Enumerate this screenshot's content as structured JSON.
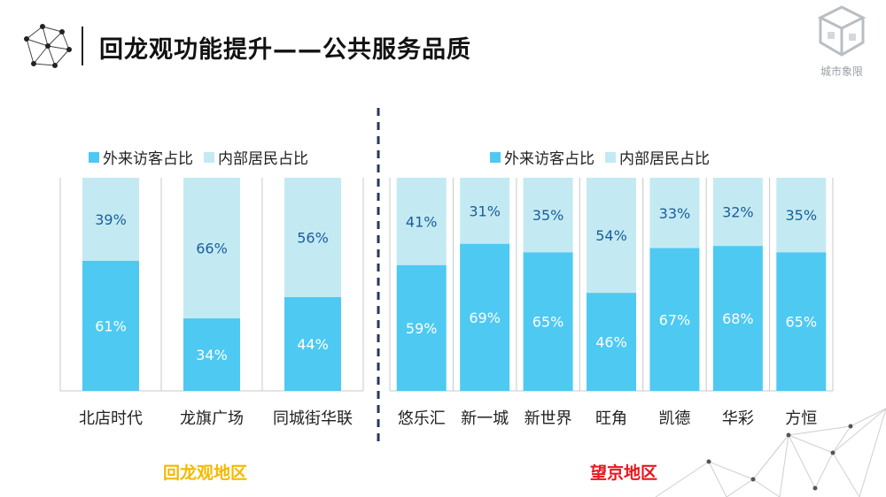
{
  "title": "回龙观功能提升——公共服务品质",
  "logo_text": "城市象限",
  "colors": {
    "visitor": "#4ec9f2",
    "resident": "#c3eaf2",
    "grid": "#c8c8c8",
    "value_text_dark": "#1a5e9e",
    "value_text_light": "#ffffff",
    "region_left": "#f5b800",
    "region_right": "#e8161c"
  },
  "chart_data": [
    {
      "type": "bar",
      "stacked": true,
      "percent": true,
      "categories": [
        "北店时代",
        "龙旗广场",
        "同城街华联"
      ],
      "series": [
        {
          "name": "外来访客占比",
          "values": [
            61,
            34,
            44
          ]
        },
        {
          "name": "内部居民占比",
          "values": [
            39,
            66,
            56
          ]
        }
      ],
      "ylim": [
        0,
        100
      ],
      "legend": "top-left",
      "region": "回龙观地区"
    },
    {
      "type": "bar",
      "stacked": true,
      "percent": true,
      "categories": [
        "悠乐汇",
        "新一城",
        "新世界",
        "旺角",
        "凯德",
        "华彩",
        "方恒"
      ],
      "series": [
        {
          "name": "外来访客占比",
          "values": [
            59,
            69,
            65,
            46,
            67,
            68,
            65
          ]
        },
        {
          "name": "内部居民占比",
          "values": [
            41,
            31,
            35,
            54,
            33,
            32,
            35
          ]
        }
      ],
      "ylim": [
        0,
        100
      ],
      "legend": "top-center",
      "region": "望京地区"
    }
  ]
}
